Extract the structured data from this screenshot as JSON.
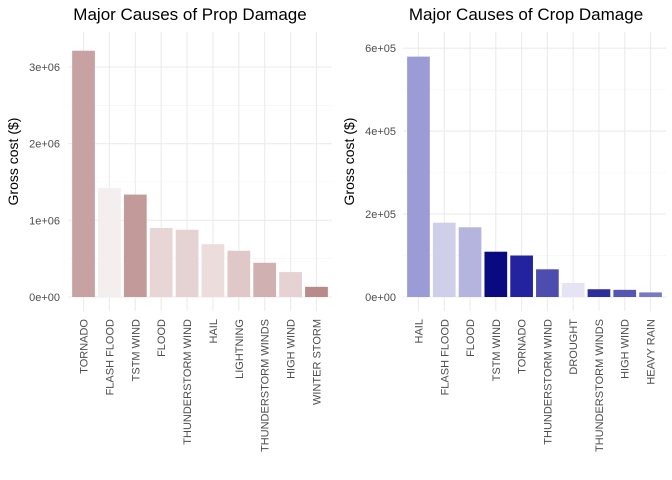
{
  "chart_data": [
    {
      "type": "bar",
      "title": "Major Causes of Prop Damage",
      "xlabel": "",
      "ylabel": "Gross cost ($)",
      "categories": [
        "TORNADO",
        "FLASH FLOOD",
        "TSTM WIND",
        "FLOOD",
        "THUNDERSTORM WIND",
        "HAIL",
        "LIGHTNING",
        "THUNDERSTORM WINDS",
        "HIGH WIND",
        "WINTER STORM"
      ],
      "values": [
        3212258,
        1420125,
        1335966,
        899938,
        876844,
        688693,
        603352,
        446294,
        324732,
        132721
      ],
      "ylim": [
        0,
        3300000
      ],
      "yticks": [
        0,
        1000000,
        2000000,
        3000000
      ],
      "ytick_labels": [
        "0e+00",
        "1e+06",
        "2e+06",
        "3e+06"
      ],
      "bar_colors": [
        "#c8a2a2",
        "#f5eeee",
        "#c29a9a",
        "#e8d6d6",
        "#e5d2d2",
        "#eddcdc",
        "#e0c8c8",
        "#d0b0b0",
        "#e6d2d2",
        "#b98a8a"
      ],
      "grid": true
    },
    {
      "type": "bar",
      "title": "Major Causes of Crop Damage",
      "xlabel": "",
      "ylabel": "Gross cost ($)",
      "categories": [
        "HAIL",
        "FLASH FLOOD",
        "FLOOD",
        "TSTM WIND",
        "TORNADO",
        "THUNDERSTORM WIND",
        "DROUGHT",
        "THUNDERSTORM WINDS",
        "HIGH WIND",
        "HEAVY RAIN"
      ],
      "values": [
        579596,
        179200,
        168038,
        109203,
        100019,
        66791,
        33899,
        18685,
        17283,
        11123
      ],
      "ylim": [
        0,
        610000
      ],
      "yticks": [
        0,
        200000,
        400000,
        600000
      ],
      "ytick_labels": [
        "0e+00",
        "2e+05",
        "4e+05",
        "6e+05"
      ],
      "bar_colors": [
        "#9b9bd6",
        "#cfcfe9",
        "#b4b4df",
        "#0a0a80",
        "#2323a0",
        "#4d4daf",
        "#e4e4f3",
        "#2d2d9c",
        "#5555b3",
        "#7a7ac4"
      ],
      "grid": true
    }
  ]
}
